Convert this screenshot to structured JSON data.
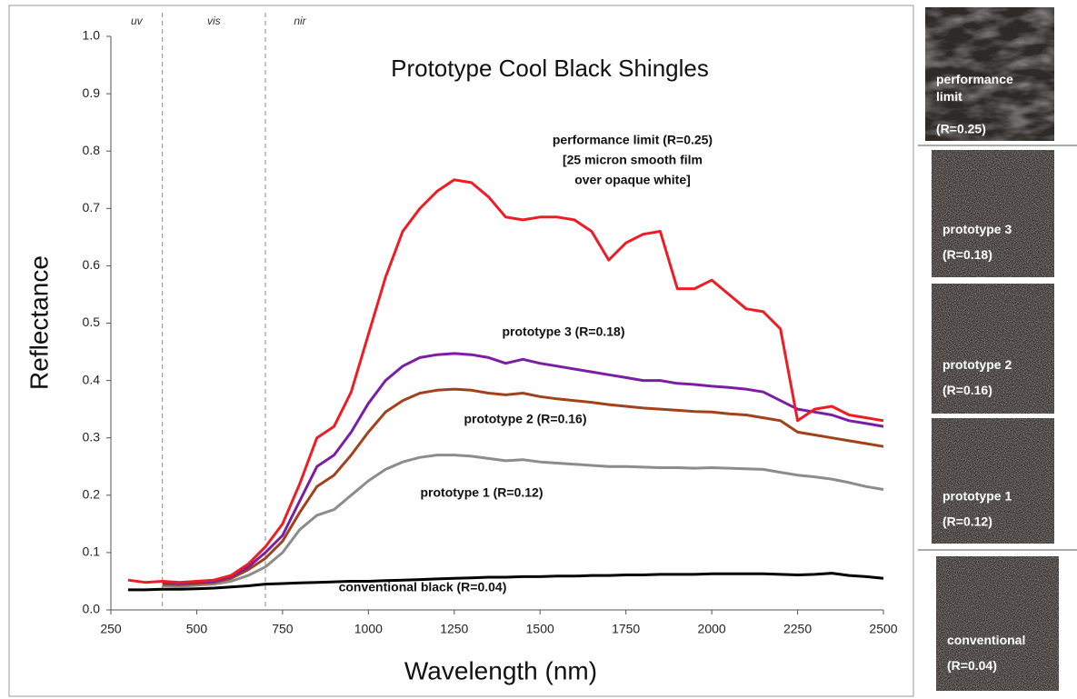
{
  "chart_data": {
    "type": "line",
    "title": "Prototype Cool Black Shingles",
    "xlabel": "Wavelength (nm)",
    "ylabel": "Reflectance",
    "xlim": [
      250,
      2500
    ],
    "ylim": [
      0,
      1
    ],
    "xticks": [
      250,
      500,
      750,
      1000,
      1250,
      1500,
      1750,
      2000,
      2250,
      2500
    ],
    "yticks": [
      {
        "value": 0,
        "label": "0.0"
      },
      0.1,
      0.2,
      0.3,
      0.4,
      0.5,
      0.6,
      0.7,
      0.8,
      0.9,
      {
        "value": 1,
        "label": "1.0"
      }
    ],
    "vlines": [
      400,
      700
    ],
    "regions": [
      "uv",
      "vis",
      "nir"
    ],
    "annotations": [
      "[25 micron smooth film",
      "over opaque white]"
    ],
    "x": [
      300,
      350,
      400,
      450,
      500,
      550,
      600,
      650,
      700,
      750,
      800,
      850,
      900,
      950,
      1000,
      1050,
      1100,
      1150,
      1200,
      1250,
      1300,
      1350,
      1400,
      1450,
      1500,
      1550,
      1600,
      1650,
      1700,
      1750,
      1800,
      1850,
      1900,
      1950,
      2000,
      2050,
      2100,
      2150,
      2200,
      2250,
      2300,
      2350,
      2400,
      2450,
      2500
    ],
    "series": [
      {
        "name": "performance limit (R=0.25)",
        "color": "#ee1c24",
        "values": [
          0.052,
          0.048,
          0.05,
          0.048,
          0.05,
          0.052,
          0.06,
          0.08,
          0.11,
          0.15,
          0.22,
          0.3,
          0.32,
          0.38,
          0.48,
          0.58,
          0.66,
          0.7,
          0.73,
          0.75,
          0.745,
          0.72,
          0.685,
          0.68,
          0.685,
          0.685,
          0.68,
          0.66,
          0.61,
          0.64,
          0.655,
          0.66,
          0.56,
          0.56,
          0.575,
          0.55,
          0.525,
          0.52,
          0.49,
          0.33,
          0.35,
          0.355,
          0.34,
          0.335,
          0.33
        ]
      },
      {
        "name": "prototype 3 (R=0.18)",
        "color": "#7b1fa2",
        "values": [
          null,
          null,
          0.048,
          0.047,
          0.048,
          0.05,
          0.058,
          0.075,
          0.1,
          0.13,
          0.19,
          0.25,
          0.27,
          0.31,
          0.36,
          0.4,
          0.425,
          0.44,
          0.445,
          0.447,
          0.445,
          0.44,
          0.43,
          0.437,
          0.43,
          0.425,
          0.42,
          0.415,
          0.41,
          0.405,
          0.4,
          0.4,
          0.395,
          0.393,
          0.39,
          0.388,
          0.385,
          0.38,
          0.365,
          0.35,
          0.345,
          0.34,
          0.33,
          0.325,
          0.32
        ]
      },
      {
        "name": "prototype 2 (R=0.16)",
        "color": "#a0421b",
        "values": [
          null,
          null,
          0.045,
          0.044,
          0.046,
          0.048,
          0.055,
          0.07,
          0.09,
          0.12,
          0.17,
          0.215,
          0.235,
          0.27,
          0.31,
          0.345,
          0.365,
          0.378,
          0.383,
          0.385,
          0.383,
          0.378,
          0.375,
          0.378,
          0.372,
          0.368,
          0.365,
          0.362,
          0.358,
          0.355,
          0.352,
          0.35,
          0.348,
          0.346,
          0.345,
          0.342,
          0.34,
          0.335,
          0.33,
          0.31,
          0.305,
          0.3,
          0.295,
          0.29,
          0.285
        ]
      },
      {
        "name": "prototype 1 (R=0.12)",
        "color": "#8c8c8c",
        "values": [
          null,
          null,
          0.042,
          0.041,
          0.043,
          0.045,
          0.05,
          0.06,
          0.075,
          0.1,
          0.14,
          0.165,
          0.175,
          0.2,
          0.225,
          0.245,
          0.258,
          0.266,
          0.27,
          0.27,
          0.268,
          0.264,
          0.26,
          0.262,
          0.258,
          0.256,
          0.254,
          0.252,
          0.25,
          0.25,
          0.249,
          0.248,
          0.248,
          0.247,
          0.248,
          0.247,
          0.246,
          0.245,
          0.24,
          0.235,
          0.232,
          0.228,
          0.222,
          0.215,
          0.21
        ]
      },
      {
        "name": "conventional black (R=0.04)",
        "color": "#000000",
        "values": [
          0.035,
          0.035,
          0.036,
          0.036,
          0.037,
          0.038,
          0.04,
          0.042,
          0.045,
          0.046,
          0.047,
          0.048,
          0.049,
          0.05,
          0.05,
          0.051,
          0.052,
          0.053,
          0.054,
          0.055,
          0.056,
          0.057,
          0.057,
          0.058,
          0.058,
          0.059,
          0.059,
          0.06,
          0.06,
          0.061,
          0.061,
          0.062,
          0.062,
          0.062,
          0.063,
          0.063,
          0.063,
          0.063,
          0.062,
          0.061,
          0.062,
          0.064,
          0.06,
          0.058,
          0.055
        ]
      }
    ]
  },
  "side_panel": {
    "samples": [
      {
        "label": "performance limit",
        "reflectance": "(R=0.25)"
      },
      {
        "label": "prototype 3",
        "reflectance": "(R=0.18)"
      },
      {
        "label": "prototype 2",
        "reflectance": "(R=0.16)"
      },
      {
        "label": "prototype 1",
        "reflectance": "(R=0.12)"
      },
      {
        "label": "conventional",
        "reflectance": "(R=0.04)"
      }
    ]
  }
}
